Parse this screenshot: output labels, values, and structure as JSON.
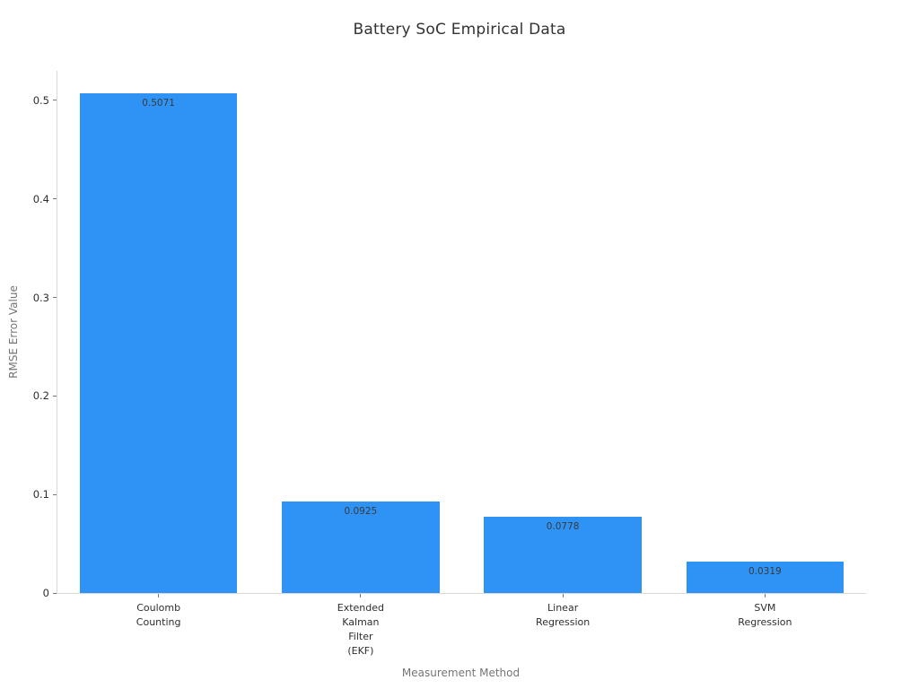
{
  "colors": {
    "bar": "#2F92F5",
    "spine": "#D9D9D9",
    "tick": "#767676",
    "tick_label": "#2E2E2E",
    "value_label": "#3A3A3A",
    "axis_label": "#757575",
    "title": "#333333",
    "background": "#FFFFFF"
  },
  "chart_data": {
    "type": "bar",
    "title": "Battery SoC Empirical Data",
    "xlabel": "Measurement Method",
    "ylabel": "RMSE Error Value",
    "categories": [
      "Coulomb Counting",
      "Extended Kalman Filter (EKF)",
      "Linear Regression",
      "SVM Regression"
    ],
    "category_lines": [
      [
        "Coulomb",
        "Counting"
      ],
      [
        "Extended",
        "Kalman",
        "Filter",
        "(EKF)"
      ],
      [
        "Linear",
        "Regression"
      ],
      [
        "SVM",
        "Regression"
      ]
    ],
    "values": [
      0.5071,
      0.0925,
      0.0778,
      0.0319
    ],
    "value_labels": [
      "0.5071",
      "0.0925",
      "0.0778",
      "0.0319"
    ],
    "yticks": [
      0,
      0.1,
      0.2,
      0.3,
      0.4,
      0.5
    ],
    "ytick_labels": [
      "0",
      "0.1",
      "0.2",
      "0.3",
      "0.4",
      "0.5"
    ],
    "ylim": [
      0,
      0.53
    ],
    "grid": false,
    "legend": null,
    "orientation": "vertical"
  }
}
